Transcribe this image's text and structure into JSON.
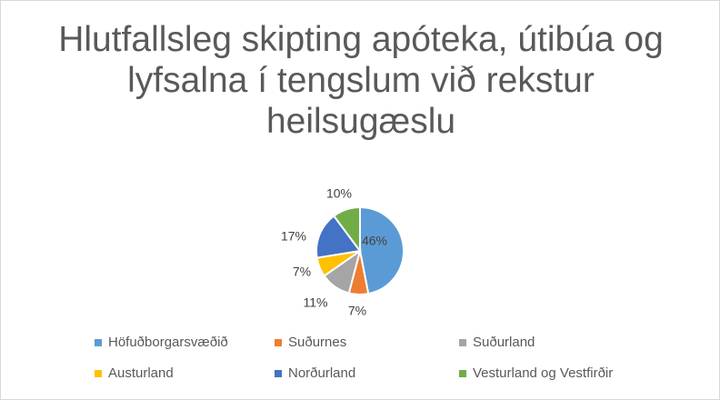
{
  "chart_data": {
    "type": "pie",
    "title": "Hlutfallsleg skipting apóteka, útibúa og lyfsalna í tengslum við rekstur heilsugæslu",
    "legend_position": "bottom",
    "categories": [
      "Höfuðborgarsvæðið",
      "Suðurnes",
      "Suðurland",
      "Austurland",
      "Norðurland",
      "Vesturland og Vestfirðir"
    ],
    "values": [
      46,
      7,
      11,
      7,
      17,
      10
    ],
    "labels": [
      "46%",
      "7%",
      "11%",
      "7%",
      "17%",
      "10%"
    ],
    "colors": [
      "#5b9bd5",
      "#ed7d31",
      "#a5a5a5",
      "#ffc000",
      "#4472c4",
      "#70ad47"
    ]
  }
}
